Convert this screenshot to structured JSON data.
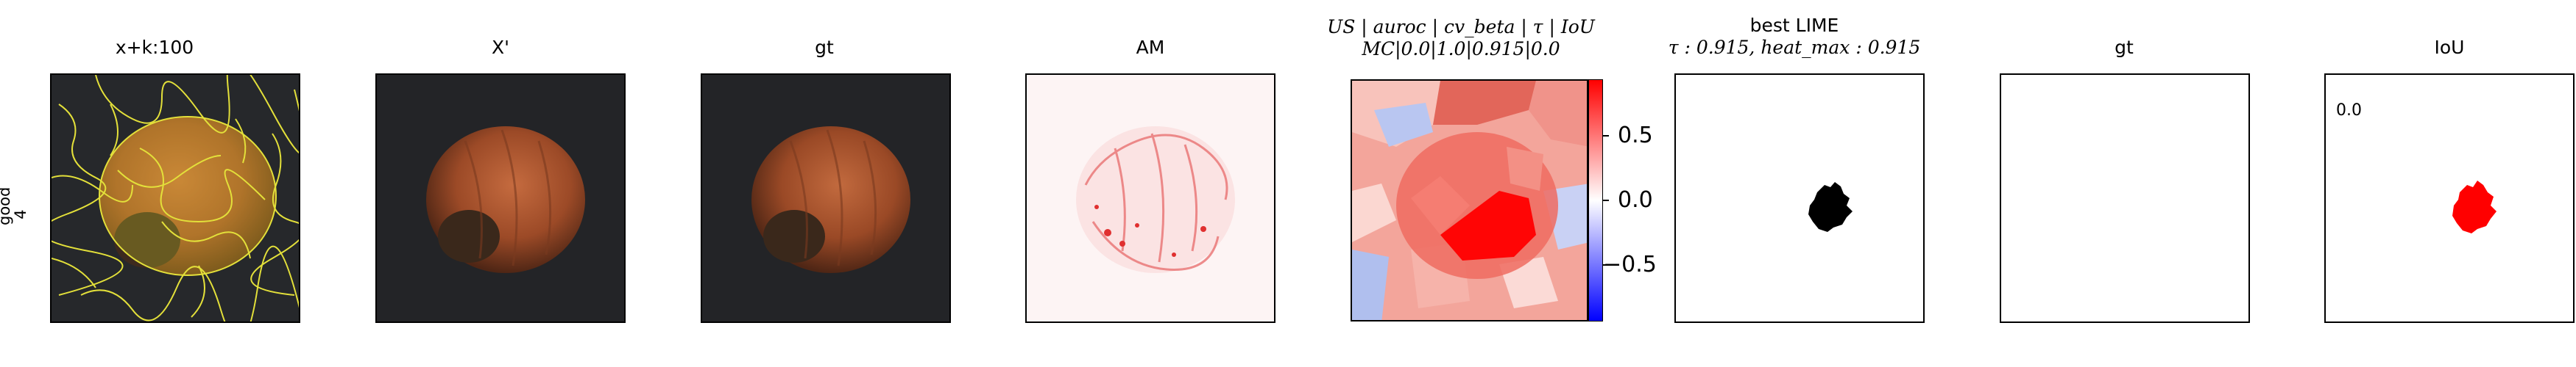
{
  "row_label": [
    "good",
    "4"
  ],
  "panels": [
    {
      "title": "x+k:100"
    },
    {
      "title": "X'"
    },
    {
      "title": "gt"
    },
    {
      "title": "AM"
    },
    {
      "title_line1": "US | auroc | cv_beta | τ | IoU",
      "title_line2": "MC|0.0|1.0|0.915|0.0"
    },
    {
      "title_line1": "best LIME",
      "title_line2": "τ : 0.915, heat_max : 0.915"
    },
    {
      "title": "gt"
    },
    {
      "title": "IoU"
    }
  ],
  "iou_text": "0.0",
  "colorbar": {
    "ticks": [
      "0.5",
      "0.0",
      "−0.5"
    ],
    "colors": [
      "#ff0000",
      "#ffffff",
      "#0000ff"
    ]
  }
}
